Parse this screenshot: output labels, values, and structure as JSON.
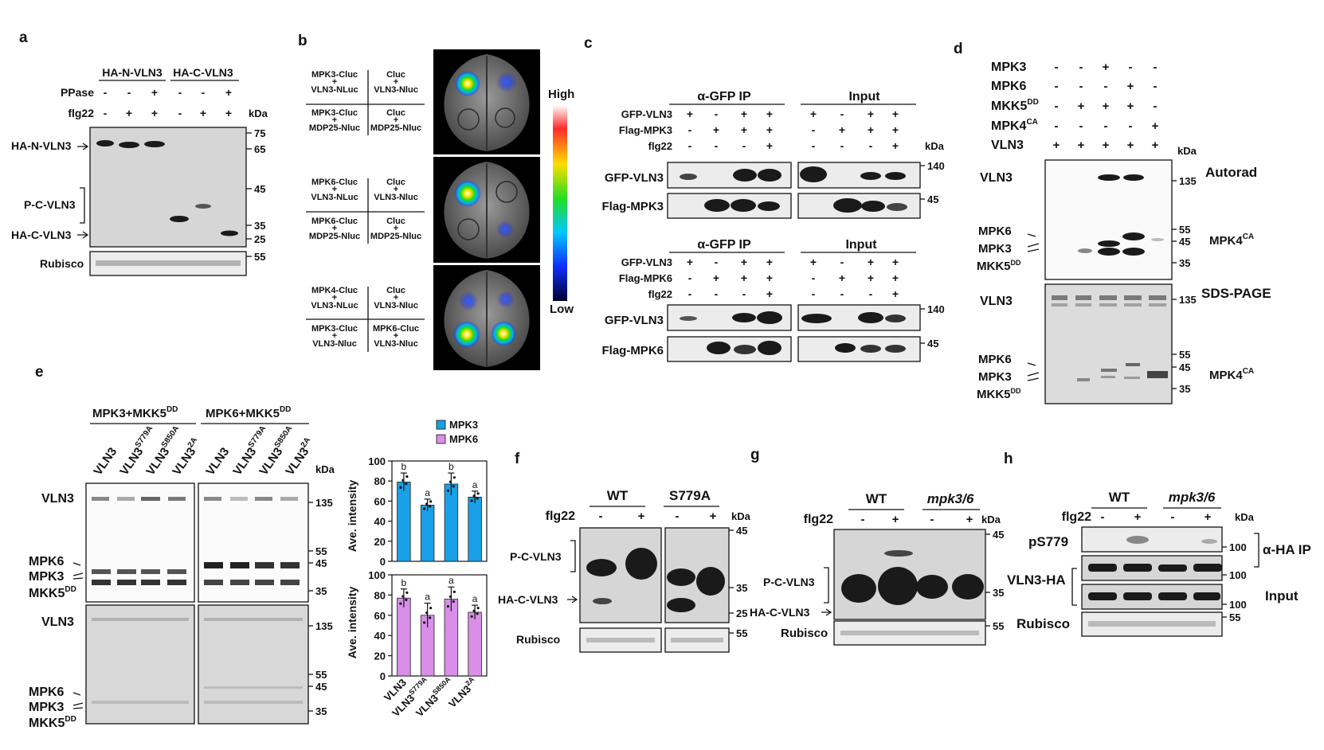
{
  "panels": {
    "a": {
      "letter": "a",
      "groups": [
        "HA-N-VLN3",
        "HA-C-VLN3"
      ],
      "row_ppase": {
        "label": "PPase",
        "signs": [
          "-",
          "-",
          "+",
          "-",
          "-",
          "+"
        ]
      },
      "row_flg": {
        "label": "flg22",
        "signs": [
          "-",
          "+",
          "+",
          "-",
          "+",
          "+"
        ]
      },
      "kda": "kDa",
      "markers": [
        "75",
        "65",
        "45",
        "35",
        "25",
        "55"
      ],
      "labels": [
        "HA-N-VLN3",
        "P-C-VLN3",
        "HA-C-VLN3",
        "Rubisco"
      ]
    },
    "b": {
      "letter": "b",
      "leaf1": [
        "MPK3-Cluc",
        "VLN3-NLuc",
        "Cluc",
        "VLN3-Nluc",
        "MPK3-Cluc",
        "MDP25-Nluc",
        "Cluc",
        "MDP25-Nluc"
      ],
      "leaf2": [
        "MPK6-Cluc",
        "VLN3-NLuc",
        "Cluc",
        "VLN3-Nluc",
        "MPK6-Cluc",
        "MDP25-Nluc",
        "Cluc",
        "MDP25-Nluc"
      ],
      "leaf3": [
        "MPK4-Cluc",
        "VLN3-NLuc",
        "Cluc",
        "VLN3-Nluc",
        "MPK3-Cluc",
        "VLN3-Nluc",
        "MPK6-Cluc",
        "VLN3-Nluc"
      ],
      "plus": "+",
      "scale_high": "High",
      "scale_low": "Low"
    },
    "c": {
      "letter": "c",
      "ip": "α-GFP IP",
      "input": "Input",
      "top_rows": [
        {
          "label": "GFP-VLN3",
          "signs": [
            "+",
            "-",
            "+",
            "+",
            "+",
            "-",
            "+",
            "+"
          ]
        },
        {
          "label": "Flag-MPK3",
          "signs": [
            "-",
            "+",
            "+",
            "+",
            "-",
            "+",
            "+",
            "+"
          ]
        },
        {
          "label": "flg22",
          "signs": [
            "-",
            "-",
            "-",
            "+",
            "-",
            "-",
            "-",
            "+"
          ]
        }
      ],
      "bottom_rows": [
        {
          "label": "GFP-VLN3",
          "signs": [
            "+",
            "-",
            "+",
            "+",
            "+",
            "-",
            "+",
            "+"
          ]
        },
        {
          "label": "Flag-MPK6",
          "signs": [
            "-",
            "+",
            "+",
            "+",
            "-",
            "+",
            "+",
            "+"
          ]
        },
        {
          "label": "flg22",
          "signs": [
            "-",
            "-",
            "-",
            "+",
            "-",
            "-",
            "-",
            "+"
          ]
        }
      ],
      "blots_top": [
        "GFP-VLN3",
        "Flag-MPK3"
      ],
      "blots_bottom": [
        "GFP-VLN3",
        "Flag-MPK6"
      ],
      "kda": "kDa",
      "m140": "140",
      "m45": "45"
    },
    "d": {
      "letter": "d",
      "rows": [
        {
          "label": "MPK3",
          "signs": [
            "-",
            "-",
            "+",
            "-",
            "-"
          ]
        },
        {
          "label": "MPK6",
          "signs": [
            "-",
            "-",
            "-",
            "+",
            "-"
          ]
        },
        {
          "label": "MKK5DD",
          "signs": [
            "-",
            "+",
            "+",
            "+",
            "-"
          ]
        },
        {
          "label": "MPK4CA",
          "signs": [
            "-",
            "-",
            "-",
            "-",
            "+"
          ]
        },
        {
          "label": "VLN3",
          "signs": [
            "+",
            "+",
            "+",
            "+",
            "+"
          ]
        }
      ],
      "kda": "kDa",
      "autorad": "Autorad",
      "sds": "SDS-PAGE",
      "vln3": "VLN3",
      "mpk6": "MPK6",
      "mpk3": "MPK3",
      "mkk5": "MKK5",
      "dd": "DD",
      "mpk4": "MPK4",
      "ca": "CA",
      "m135": "135",
      "m55": "55",
      "m45": "45",
      "m35": "35"
    },
    "e": {
      "letter": "e",
      "g1": "MPK3+MKK5",
      "g2": "MPK6+MKK5",
      "dd": "DD",
      "lanes": [
        "VLN3",
        "VLN3",
        "VLN3",
        "VLN3"
      ],
      "sups": [
        "",
        "S779A",
        "S850A",
        "2A"
      ],
      "kda": "kDa",
      "vln3": "VLN3",
      "mpk6": "MPK6",
      "mpk3": "MPK3",
      "mkk5": "MKK5",
      "m135": "135",
      "m55": "55",
      "m45": "45",
      "m35": "35",
      "ylabel": "Ave. intensity",
      "legend": [
        "MPK3",
        "MPK6"
      ]
    },
    "f": {
      "letter": "f",
      "wt": "WT",
      "mut": "S779A",
      "flg": "flg22",
      "signs": [
        "-",
        "+",
        "-",
        "+"
      ],
      "kda": "kDa",
      "labels": [
        "P-C-VLN3",
        "HA-C-VLN3",
        "Rubisco"
      ],
      "markers": [
        "45",
        "35",
        "25",
        "55"
      ]
    },
    "g": {
      "letter": "g",
      "wt": "WT",
      "mut": "mpk3/6",
      "flg": "flg22",
      "signs": [
        "-",
        "+",
        "-",
        "+"
      ],
      "kda": "kDa",
      "labels": [
        "P-C-VLN3",
        "HA-C-VLN3",
        "Rubisco"
      ],
      "markers": [
        "45",
        "35",
        "55"
      ]
    },
    "h": {
      "letter": "h",
      "wt": "WT",
      "mut": "mpk3/6",
      "flg": "flg22",
      "signs": [
        "-",
        "+",
        "-",
        "+"
      ],
      "kda": "kDa",
      "labels": [
        "pS779",
        "VLN3-HA",
        "Rubisco"
      ],
      "markers": [
        "100",
        "100",
        "100",
        "55"
      ],
      "ip": "α-HA IP",
      "input": "Input"
    }
  },
  "colors": {
    "mpk3": "#1aa0e6",
    "mpk6": "#d98ee8"
  },
  "chart_data": [
    {
      "type": "bar",
      "categories": [
        "VLN3",
        "VLN3S779A",
        "VLN3S850A",
        "VLN32A"
      ],
      "series": [
        {
          "name": "MPK3",
          "values": [
            79,
            56,
            77,
            64
          ],
          "errors": [
            9,
            6,
            11,
            6
          ],
          "letters": [
            "b",
            "a",
            "b",
            "a"
          ]
        }
      ],
      "ylabel": "Ave. intensity",
      "ylim": [
        0,
        100
      ],
      "yticks": [
        0,
        20,
        40,
        60,
        80,
        100
      ]
    },
    {
      "type": "bar",
      "categories": [
        "VLN3",
        "VLN3S779A",
        "VLN3S850A",
        "VLN32A"
      ],
      "series": [
        {
          "name": "MPK6",
          "values": [
            77,
            60,
            76,
            63
          ],
          "errors": [
            9,
            12,
            12,
            7
          ],
          "letters": [
            "b",
            "a",
            "a",
            "a"
          ]
        }
      ],
      "ylabel": "Ave. intensity",
      "ylim": [
        0,
        100
      ],
      "yticks": [
        0,
        20,
        40,
        60,
        80,
        100
      ]
    }
  ]
}
